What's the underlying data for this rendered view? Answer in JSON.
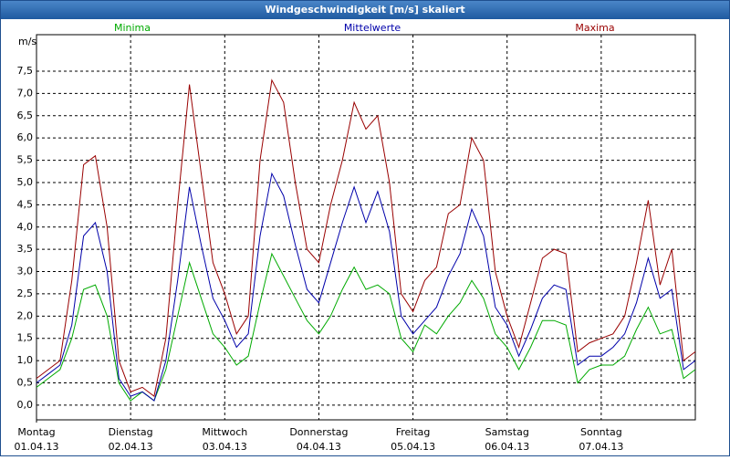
{
  "chart_data": {
    "type": "line",
    "title": "Windgeschwindigkeit [m/s] skaliert",
    "y_axis_label": "m/s",
    "x": [
      0,
      3,
      6,
      9,
      12,
      15,
      18,
      21,
      24,
      27,
      30,
      33,
      36,
      39,
      42,
      45,
      48,
      51,
      54,
      57,
      60,
      63,
      66,
      69,
      72,
      75,
      78,
      81,
      84,
      87,
      90,
      93,
      96,
      99,
      102,
      105,
      108,
      111,
      114,
      117,
      120,
      123,
      126,
      129,
      132,
      135,
      138,
      141,
      144,
      147,
      150,
      153,
      156,
      159,
      162,
      165,
      168
    ],
    "xlim": [
      0,
      168
    ],
    "xticks": [
      {
        "value": 0,
        "label": "Montag",
        "sublabel": "01.04.13"
      },
      {
        "value": 24,
        "label": "Dienstag",
        "sublabel": "02.04.13"
      },
      {
        "value": 48,
        "label": "Mittwoch",
        "sublabel": "03.04.13"
      },
      {
        "value": 72,
        "label": "Donnerstag",
        "sublabel": "04.04.13"
      },
      {
        "value": 96,
        "label": "Freitag",
        "sublabel": "05.04.13"
      },
      {
        "value": 120,
        "label": "Samstag",
        "sublabel": "06.04.13"
      },
      {
        "value": 144,
        "label": "Sonntag",
        "sublabel": "07.04.13"
      }
    ],
    "ylim": [
      -0.33,
      8.32
    ],
    "yticks": [
      {
        "value": 0,
        "label": "0,0"
      },
      {
        "value": 0.5,
        "label": "0,5"
      },
      {
        "value": 1,
        "label": "1,0"
      },
      {
        "value": 1.5,
        "label": "1,5"
      },
      {
        "value": 2,
        "label": "2,0"
      },
      {
        "value": 2.5,
        "label": "2,5"
      },
      {
        "value": 3,
        "label": "3,0"
      },
      {
        "value": 3.5,
        "label": "3,5"
      },
      {
        "value": 4,
        "label": "4,0"
      },
      {
        "value": 4.5,
        "label": "4,5"
      },
      {
        "value": 5,
        "label": "5,0"
      },
      {
        "value": 5.5,
        "label": "5,5"
      },
      {
        "value": 6,
        "label": "6,0"
      },
      {
        "value": 6.5,
        "label": "6,5"
      },
      {
        "value": 7,
        "label": "7,0"
      },
      {
        "value": 7.5,
        "label": "7,5"
      }
    ],
    "grid": true,
    "series": [
      {
        "name": "Minima",
        "color": "#00aa00",
        "values": [
          0.4,
          0.6,
          0.8,
          1.5,
          2.6,
          2.7,
          2.0,
          0.5,
          0.1,
          0.3,
          0.1,
          0.8,
          2.0,
          3.2,
          2.4,
          1.6,
          1.3,
          0.9,
          1.1,
          2.3,
          3.4,
          2.9,
          2.4,
          1.9,
          1.6,
          2.0,
          2.6,
          3.1,
          2.6,
          2.7,
          2.5,
          1.5,
          1.2,
          1.8,
          1.6,
          2.0,
          2.3,
          2.8,
          2.4,
          1.6,
          1.3,
          0.8,
          1.3,
          1.9,
          1.9,
          1.8,
          0.5,
          0.8,
          0.9,
          0.9,
          1.1,
          1.7,
          2.2,
          1.6,
          1.7,
          0.6,
          0.8
        ]
      },
      {
        "name": "Mittelwerte",
        "color": "#0000aa",
        "values": [
          0.5,
          0.7,
          0.9,
          1.8,
          3.8,
          4.1,
          3.0,
          0.6,
          0.2,
          0.3,
          0.1,
          1.0,
          2.8,
          4.9,
          3.6,
          2.4,
          1.9,
          1.3,
          1.6,
          3.8,
          5.2,
          4.7,
          3.6,
          2.6,
          2.3,
          3.2,
          4.1,
          4.9,
          4.1,
          4.8,
          3.9,
          2.0,
          1.6,
          1.9,
          2.2,
          2.9,
          3.4,
          4.4,
          3.8,
          2.2,
          1.8,
          1.1,
          1.7,
          2.4,
          2.7,
          2.6,
          0.9,
          1.1,
          1.1,
          1.3,
          1.6,
          2.3,
          3.3,
          2.4,
          2.6,
          0.8,
          1.0
        ]
      },
      {
        "name": "Maxima",
        "color": "#990000",
        "values": [
          0.6,
          0.8,
          1.0,
          2.8,
          5.4,
          5.6,
          4.0,
          1.0,
          0.3,
          0.4,
          0.2,
          1.5,
          4.5,
          7.2,
          5.2,
          3.2,
          2.5,
          1.6,
          2.0,
          5.5,
          7.3,
          6.8,
          5.0,
          3.5,
          3.2,
          4.5,
          5.5,
          6.8,
          6.2,
          6.5,
          5.0,
          2.5,
          2.1,
          2.8,
          3.1,
          4.3,
          4.5,
          6.0,
          5.5,
          3.0,
          2.0,
          1.3,
          2.3,
          3.3,
          3.5,
          3.4,
          1.2,
          1.4,
          1.5,
          1.6,
          2.0,
          3.2,
          4.6,
          2.7,
          3.5,
          1.0,
          1.2
        ]
      }
    ]
  }
}
